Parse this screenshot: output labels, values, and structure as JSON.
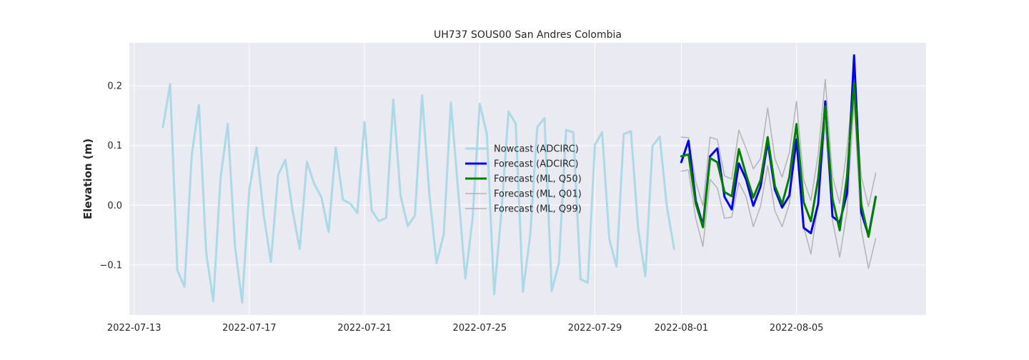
{
  "chart_data": {
    "type": "line",
    "title": "UH737 SOUS00 San Andres Colombia",
    "xlabel": "",
    "ylabel": "Elevation (m)",
    "x_axis_type": "date",
    "xlim": [
      "2022-07-12T20:00",
      "2022-08-09T12:00"
    ],
    "ylim": [
      -0.184,
      0.272
    ],
    "x_ticks": [
      "2022-07-13",
      "2022-07-17",
      "2022-07-21",
      "2022-07-25",
      "2022-07-29",
      "2022-08-01",
      "2022-08-05"
    ],
    "x_tick_labels": [
      "2022-07-13",
      "2022-07-17",
      "2022-07-21",
      "2022-07-25",
      "2022-07-29",
      "2022-08-01",
      "2022-08-05"
    ],
    "y_ticks": [
      -0.1,
      0.0,
      0.1,
      0.2
    ],
    "y_tick_labels": [
      "−0.1",
      "0.0",
      "0.1",
      "0.2"
    ],
    "grid": true,
    "background_color": "#eaeaf2",
    "legend_position": "center",
    "series": [
      {
        "name": "Nowcast (ADCIRC)",
        "color": "#add8e6",
        "line_width": 3,
        "x": [
          "2022-07-14T00:00",
          "2022-07-14T06:00",
          "2022-07-14T12:00",
          "2022-07-14T18:00",
          "2022-07-15T00:00",
          "2022-07-15T06:00",
          "2022-07-15T12:00",
          "2022-07-15T18:00",
          "2022-07-16T00:00",
          "2022-07-16T06:00",
          "2022-07-16T12:00",
          "2022-07-16T18:00",
          "2022-07-17T00:00",
          "2022-07-17T06:00",
          "2022-07-17T12:00",
          "2022-07-17T18:00",
          "2022-07-18T00:00",
          "2022-07-18T06:00",
          "2022-07-18T12:00",
          "2022-07-18T18:00",
          "2022-07-19T00:00",
          "2022-07-19T06:00",
          "2022-07-19T12:00",
          "2022-07-19T18:00",
          "2022-07-20T00:00",
          "2022-07-20T06:00",
          "2022-07-20T12:00",
          "2022-07-20T18:00",
          "2022-07-21T00:00",
          "2022-07-21T06:00",
          "2022-07-21T12:00",
          "2022-07-21T18:00",
          "2022-07-22T00:00",
          "2022-07-22T06:00",
          "2022-07-22T12:00",
          "2022-07-22T18:00",
          "2022-07-23T00:00",
          "2022-07-23T06:00",
          "2022-07-23T12:00",
          "2022-07-23T18:00",
          "2022-07-24T00:00",
          "2022-07-24T06:00",
          "2022-07-24T12:00",
          "2022-07-24T18:00",
          "2022-07-25T00:00",
          "2022-07-25T06:00",
          "2022-07-25T12:00",
          "2022-07-25T18:00",
          "2022-07-26T00:00",
          "2022-07-26T06:00",
          "2022-07-26T12:00",
          "2022-07-26T18:00",
          "2022-07-27T00:00",
          "2022-07-27T06:00",
          "2022-07-27T12:00",
          "2022-07-27T18:00",
          "2022-07-28T00:00",
          "2022-07-28T06:00",
          "2022-07-28T12:00",
          "2022-07-28T18:00",
          "2022-07-29T00:00",
          "2022-07-29T06:00",
          "2022-07-29T12:00",
          "2022-07-29T18:00",
          "2022-07-30T00:00",
          "2022-07-30T06:00",
          "2022-07-30T12:00",
          "2022-07-30T18:00",
          "2022-07-31T00:00",
          "2022-07-31T06:00",
          "2022-07-31T12:00",
          "2022-07-31T18:00"
        ],
        "y": [
          0.131,
          0.203,
          -0.109,
          -0.137,
          0.084,
          0.168,
          -0.079,
          -0.161,
          0.045,
          0.136,
          -0.068,
          -0.163,
          0.026,
          0.097,
          -0.017,
          -0.095,
          0.051,
          0.076,
          -0.009,
          -0.073,
          0.073,
          0.036,
          0.014,
          -0.045,
          0.097,
          0.009,
          0.003,
          -0.013,
          0.139,
          -0.009,
          -0.027,
          -0.021,
          0.177,
          0.016,
          -0.035,
          -0.017,
          0.184,
          0.019,
          -0.097,
          -0.049,
          0.172,
          0.025,
          -0.123,
          -0.023,
          0.17,
          0.119,
          -0.149,
          -0.013,
          0.157,
          0.137,
          -0.145,
          -0.051,
          0.131,
          0.146,
          -0.144,
          -0.097,
          0.126,
          0.122,
          -0.124,
          -0.13,
          0.101,
          0.122,
          -0.057,
          -0.103,
          0.119,
          0.124,
          -0.039,
          -0.119,
          0.099,
          0.115,
          -0.003,
          -0.073
        ]
      },
      {
        "name": "Forecast (ADCIRC)",
        "color": "#0000ee",
        "line_width": 3,
        "x": [
          "2022-08-01T00:00",
          "2022-08-01T06:00",
          "2022-08-01T12:00",
          "2022-08-01T18:00",
          "2022-08-02T00:00",
          "2022-08-02T06:00",
          "2022-08-02T12:00",
          "2022-08-02T18:00",
          "2022-08-03T00:00",
          "2022-08-03T06:00",
          "2022-08-03T12:00",
          "2022-08-03T18:00",
          "2022-08-04T00:00",
          "2022-08-04T06:00",
          "2022-08-04T12:00",
          "2022-08-04T18:00",
          "2022-08-05T00:00",
          "2022-08-05T06:00",
          "2022-08-05T12:00",
          "2022-08-05T18:00",
          "2022-08-06T00:00",
          "2022-08-06T06:00",
          "2022-08-06T12:00",
          "2022-08-06T18:00",
          "2022-08-07T00:00",
          "2022-08-07T06:00",
          "2022-08-07T12:00",
          "2022-08-07T18:00"
        ],
        "y": [
          0.072,
          0.108,
          0.008,
          -0.034,
          0.082,
          0.095,
          0.014,
          -0.007,
          0.07,
          0.043,
          -0.001,
          0.031,
          0.106,
          0.026,
          -0.004,
          0.016,
          0.11,
          -0.038,
          -0.047,
          0.002,
          0.174,
          -0.019,
          -0.029,
          0.019,
          0.251,
          -0.012,
          -0.051,
          0.014
        ]
      },
      {
        "name": "Forecast (ML, Q50)",
        "color": "#008000",
        "line_width": 3,
        "x": [
          "2022-08-01T00:00",
          "2022-08-01T06:00",
          "2022-08-01T12:00",
          "2022-08-01T18:00",
          "2022-08-02T00:00",
          "2022-08-02T06:00",
          "2022-08-02T12:00",
          "2022-08-02T18:00",
          "2022-08-03T00:00",
          "2022-08-03T06:00",
          "2022-08-03T12:00",
          "2022-08-03T18:00",
          "2022-08-04T00:00",
          "2022-08-04T06:00",
          "2022-08-04T12:00",
          "2022-08-04T18:00",
          "2022-08-05T00:00",
          "2022-08-05T06:00",
          "2022-08-05T12:00",
          "2022-08-05T18:00",
          "2022-08-06T00:00",
          "2022-08-06T06:00",
          "2022-08-06T12:00",
          "2022-08-06T18:00",
          "2022-08-07T00:00",
          "2022-08-07T06:00",
          "2022-08-07T12:00",
          "2022-08-07T18:00"
        ],
        "y": [
          0.082,
          0.085,
          0.003,
          -0.037,
          0.079,
          0.072,
          0.022,
          0.015,
          0.094,
          0.051,
          0.013,
          0.042,
          0.114,
          0.032,
          0.002,
          0.047,
          0.136,
          0.005,
          -0.027,
          0.044,
          0.166,
          0.011,
          -0.042,
          0.047,
          0.205,
          0.001,
          -0.053,
          0.014
        ]
      },
      {
        "name": "Forecast (ML, Q01)",
        "color": "#b3b3b3",
        "line_width": 1.5,
        "x": [
          "2022-08-01T00:00",
          "2022-08-01T06:00",
          "2022-08-01T12:00",
          "2022-08-01T18:00",
          "2022-08-02T00:00",
          "2022-08-02T06:00",
          "2022-08-02T12:00",
          "2022-08-02T18:00",
          "2022-08-03T00:00",
          "2022-08-03T06:00",
          "2022-08-03T12:00",
          "2022-08-03T18:00",
          "2022-08-04T00:00",
          "2022-08-04T06:00",
          "2022-08-04T12:00",
          "2022-08-04T18:00",
          "2022-08-05T00:00",
          "2022-08-05T06:00",
          "2022-08-05T12:00",
          "2022-08-05T18:00",
          "2022-08-06T00:00",
          "2022-08-06T06:00",
          "2022-08-06T12:00",
          "2022-08-06T18:00",
          "2022-08-07T00:00",
          "2022-08-07T06:00",
          "2022-08-07T12:00",
          "2022-08-07T18:00"
        ],
        "y": [
          0.057,
          0.059,
          -0.022,
          -0.069,
          0.043,
          0.029,
          -0.022,
          -0.02,
          0.038,
          0.014,
          -0.036,
          -0.002,
          0.066,
          -0.01,
          -0.036,
          0.002,
          0.115,
          -0.036,
          -0.082,
          0.003,
          0.137,
          -0.025,
          -0.087,
          -0.012,
          0.174,
          -0.041,
          -0.106,
          -0.056
        ]
      },
      {
        "name": "Forecast (ML, Q99)",
        "color": "#b3b3b3",
        "line_width": 1.5,
        "x": [
          "2022-08-01T00:00",
          "2022-08-01T06:00",
          "2022-08-01T12:00",
          "2022-08-01T18:00",
          "2022-08-02T00:00",
          "2022-08-02T06:00",
          "2022-08-02T12:00",
          "2022-08-02T18:00",
          "2022-08-03T00:00",
          "2022-08-03T06:00",
          "2022-08-03T12:00",
          "2022-08-03T18:00",
          "2022-08-04T00:00",
          "2022-08-04T06:00",
          "2022-08-04T12:00",
          "2022-08-04T18:00",
          "2022-08-05T00:00",
          "2022-08-05T06:00",
          "2022-08-05T12:00",
          "2022-08-05T18:00",
          "2022-08-06T00:00",
          "2022-08-06T06:00",
          "2022-08-06T12:00",
          "2022-08-06T18:00",
          "2022-08-07T00:00",
          "2022-08-07T06:00",
          "2022-08-07T12:00",
          "2022-08-07T18:00"
        ],
        "y": [
          0.114,
          0.113,
          0.039,
          -0.001,
          0.114,
          0.11,
          0.049,
          0.044,
          0.126,
          0.095,
          0.061,
          0.078,
          0.163,
          0.078,
          0.047,
          0.088,
          0.174,
          0.042,
          0.008,
          0.084,
          0.211,
          0.048,
          0.003,
          0.094,
          0.208,
          0.048,
          -0.002,
          0.054
        ]
      }
    ]
  }
}
